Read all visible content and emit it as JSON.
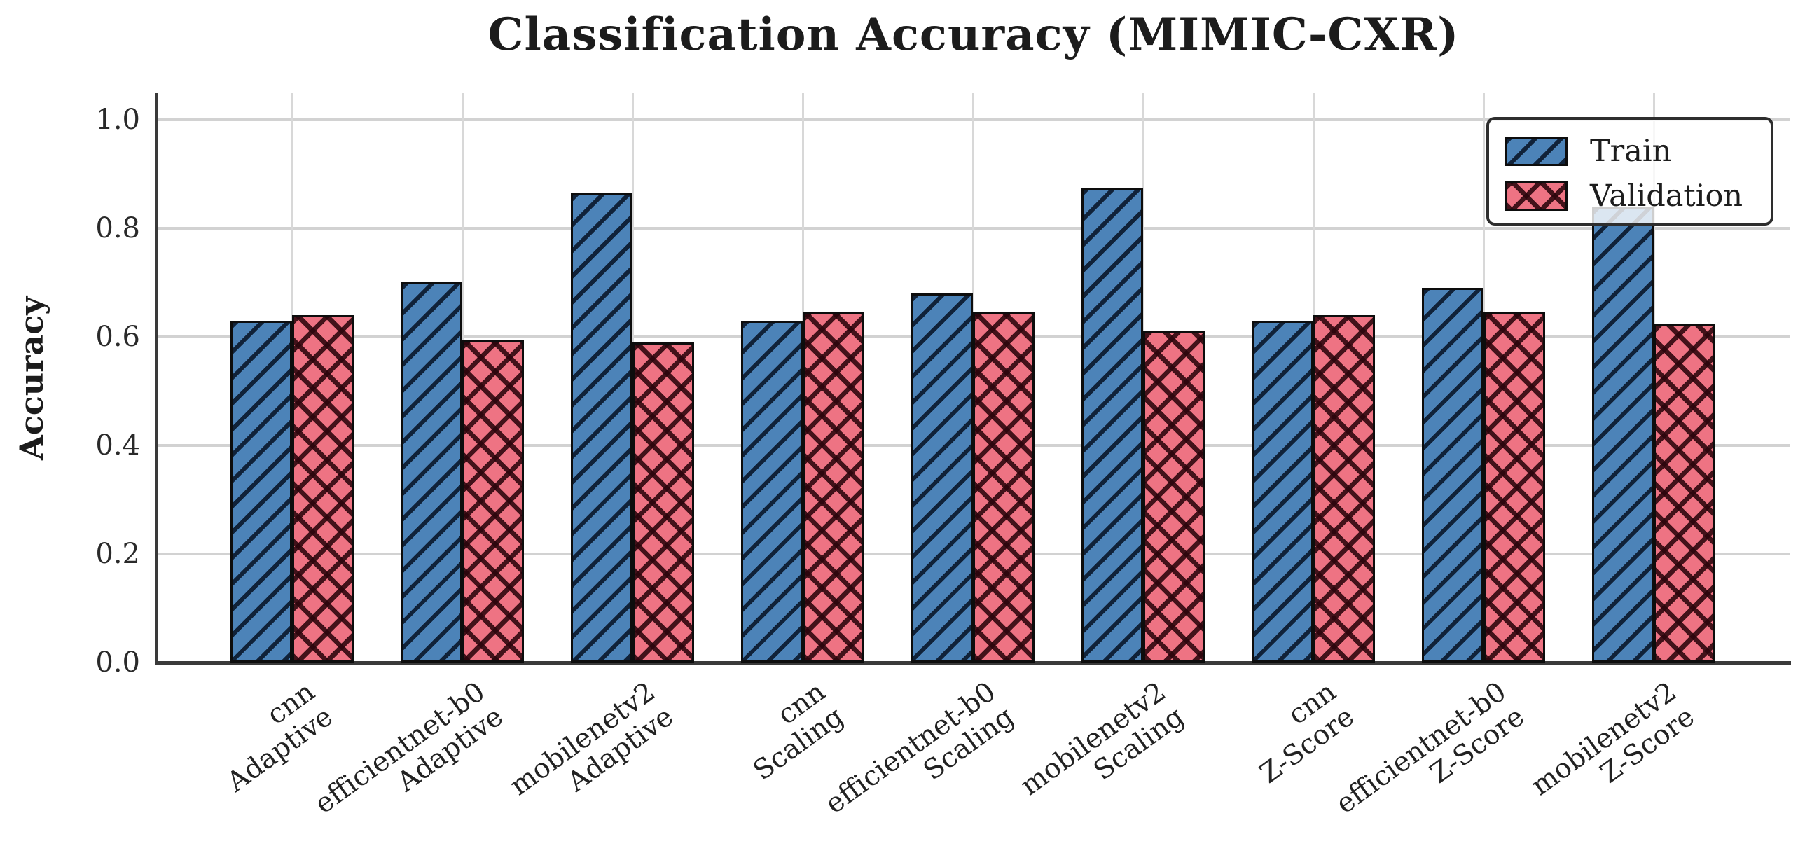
{
  "chart_data": {
    "type": "bar",
    "title": "Classification Accuracy (MIMIC-CXR)",
    "xlabel": "",
    "ylabel": "Accuracy",
    "categories": [
      {
        "model": "cnn",
        "norm": "Adaptive"
      },
      {
        "model": "efficientnet-b0",
        "norm": "Adaptive"
      },
      {
        "model": "mobilenetv2",
        "norm": "Adaptive"
      },
      {
        "model": "cnn",
        "norm": "Scaling"
      },
      {
        "model": "efficientnet-b0",
        "norm": "Scaling"
      },
      {
        "model": "mobilenetv2",
        "norm": "Scaling"
      },
      {
        "model": "cnn",
        "norm": "Z-Score"
      },
      {
        "model": "efficientnet-b0",
        "norm": "Z-Score"
      },
      {
        "model": "mobilenetv2",
        "norm": "Z-Score"
      }
    ],
    "series": [
      {
        "name": "Train",
        "values": [
          0.63,
          0.7,
          0.865,
          0.63,
          0.68,
          0.875,
          0.63,
          0.69,
          0.84
        ]
      },
      {
        "name": "Validation",
        "values": [
          0.64,
          0.595,
          0.59,
          0.645,
          0.645,
          0.61,
          0.64,
          0.645,
          0.625
        ]
      }
    ],
    "yticks": [
      {
        "value": 0.0,
        "label": "0.0"
      },
      {
        "value": 0.2,
        "label": "0.2"
      },
      {
        "value": 0.4,
        "label": "0.4"
      },
      {
        "value": 0.6,
        "label": "0.6"
      },
      {
        "value": 0.8,
        "label": "0.8"
      },
      {
        "value": 1.0,
        "label": "1.0"
      }
    ],
    "ylim": [
      0,
      1.05
    ],
    "grid": true,
    "legend_position": "upper right",
    "colors": {
      "train_fill": "#4c83b8",
      "train_hatch": "#0b1a2e",
      "validation_fill": "#ee7383",
      "validation_hatch": "#2b050c",
      "bar_edge": "#0d0d0d",
      "gridline": "#d2d2d2",
      "spine": "#3a3a3a",
      "text": "#1d1d1d"
    }
  }
}
